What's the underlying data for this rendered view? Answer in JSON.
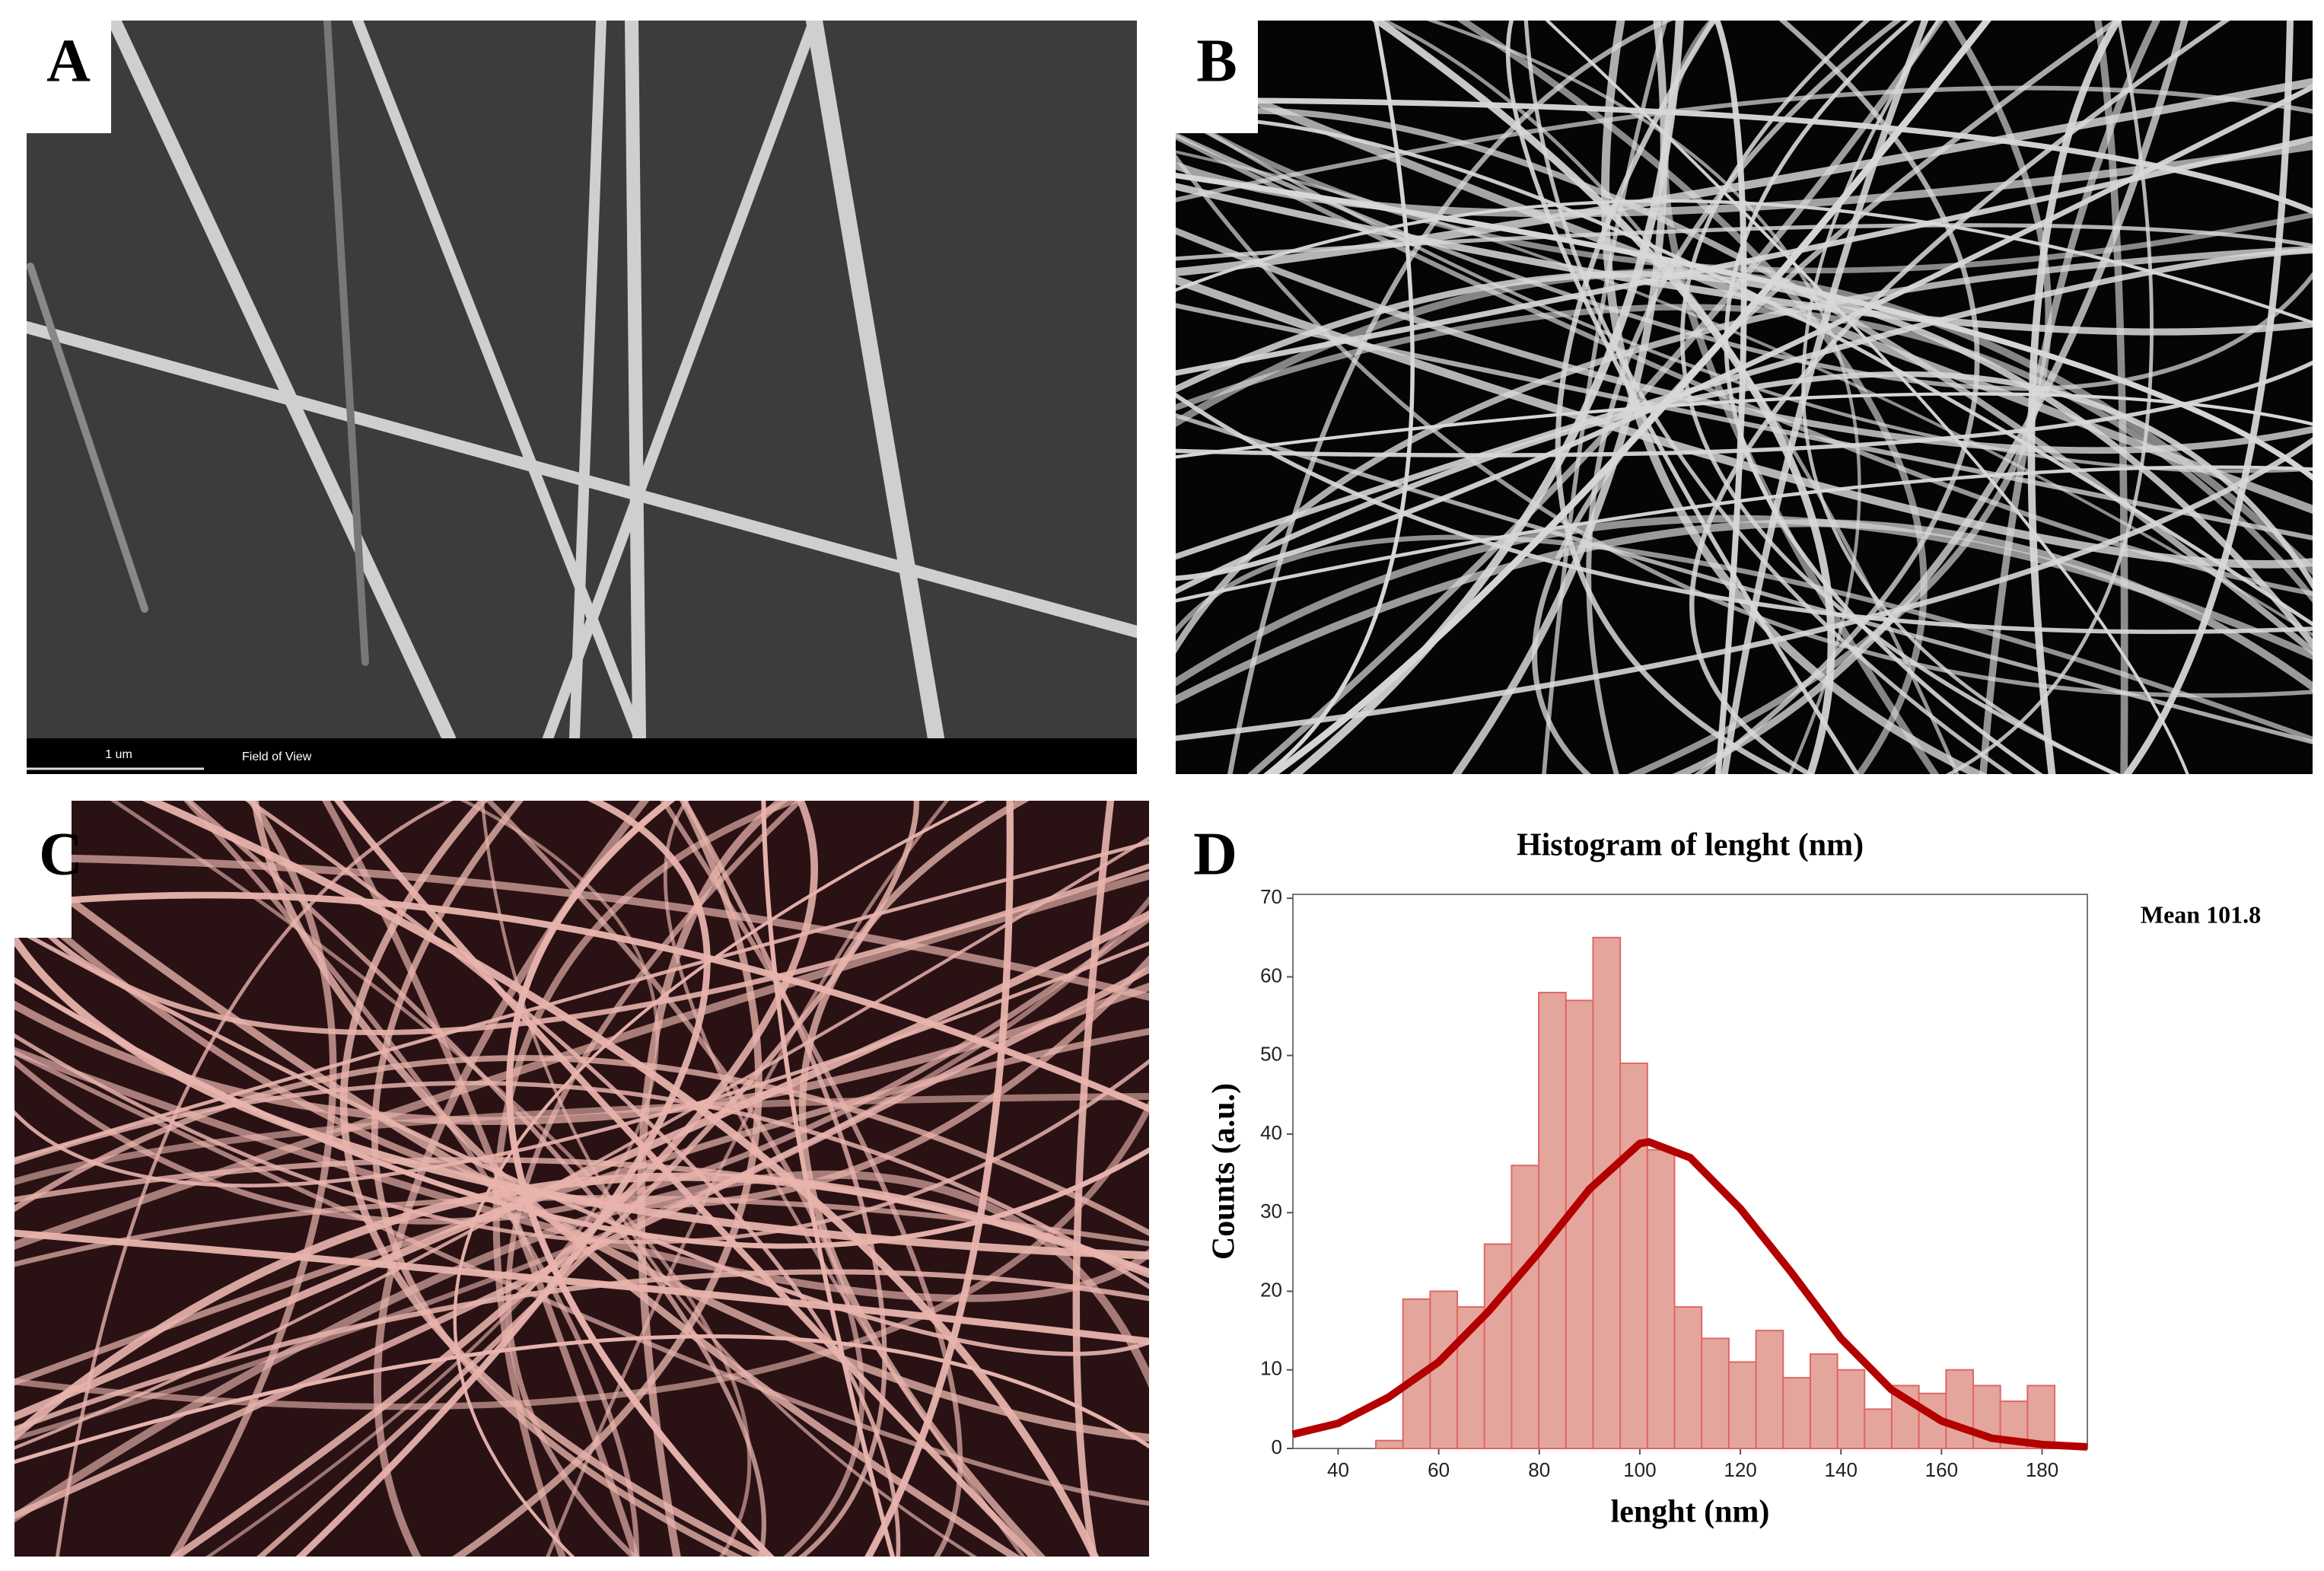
{
  "panels": {
    "a": {
      "label": "A",
      "scale_bar": "1 um",
      "field_of_view": "Field of View"
    },
    "b": {
      "label": "B"
    },
    "c": {
      "label": "C"
    },
    "d": {
      "label": "D"
    }
  },
  "chart_data": {
    "type": "histogram",
    "title": "Histogram of lenght (nm)",
    "x_label": "lenght (nm)",
    "y_label": "Counts (a.u.)",
    "annotation": "Mean 101.8",
    "bins": [
      47.5,
      52.9,
      58.3,
      63.7,
      69.1,
      74.5,
      79.9,
      85.3,
      90.7,
      96.1,
      101.5,
      106.9,
      112.3,
      117.7,
      123.1,
      128.5,
      133.9,
      139.3,
      144.7,
      150.1,
      155.5,
      160.9,
      166.3,
      171.7,
      177.1,
      182.5
    ],
    "values": [
      1,
      19,
      20,
      18,
      26,
      36,
      58,
      57,
      65,
      49,
      38,
      18,
      14,
      11,
      15,
      9,
      12,
      10,
      5,
      8,
      7,
      10,
      8,
      6,
      8
    ],
    "color": "#e4a69c",
    "edge_color": "#e06666",
    "curve": {
      "x": [
        31,
        40,
        50,
        60,
        70,
        80,
        90,
        100,
        101.8,
        110,
        120,
        130,
        140,
        150,
        160,
        170,
        180,
        189
      ],
      "values": [
        1.8,
        3.2,
        6.5,
        11,
        17.5,
        25,
        33,
        38.8,
        39,
        37,
        30.5,
        22.5,
        14,
        7.5,
        3.5,
        1.3,
        0.5,
        0.2
      ],
      "color": "#b30000"
    },
    "xlim": [
      31,
      189
    ],
    "ylim": [
      0,
      70.5
    ],
    "xticks": [
      40,
      60,
      80,
      100,
      120,
      140,
      160,
      180
    ],
    "yticks": [
      0,
      10,
      20,
      30,
      40,
      50,
      60,
      70
    ]
  }
}
